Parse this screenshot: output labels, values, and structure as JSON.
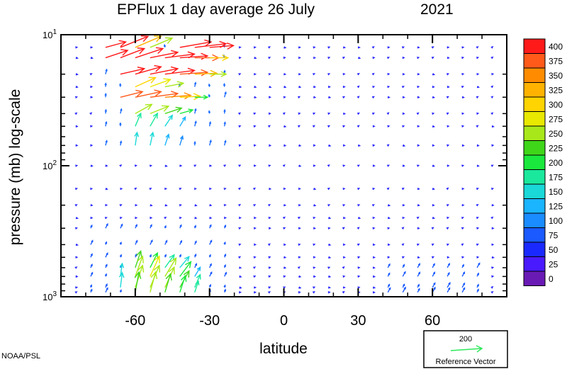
{
  "chart_data": {
    "type": "vector_field",
    "title": "EPFlux  1 day average  26 July",
    "year": "2021",
    "xlabel": "latitude",
    "ylabel": "pressure (mb)  log-scale",
    "xlim": [
      -90,
      90
    ],
    "ylim": [
      1000,
      10
    ],
    "yscale": "log",
    "x_ticks": [
      -60,
      -30,
      0,
      30,
      60
    ],
    "x_tick_labels": [
      "-60",
      "-30",
      "0",
      "30",
      "60"
    ],
    "y_tick_labels": [
      {
        "base": "10",
        "exp": "1",
        "value": 10
      },
      {
        "base": "10",
        "exp": "2",
        "value": 100
      },
      {
        "base": "10",
        "exp": "3",
        "value": 1000
      }
    ],
    "colorbar": {
      "levels": [
        "400",
        "375",
        "350",
        "325",
        "300",
        "275",
        "250",
        "225",
        "200",
        "175",
        "150",
        "125",
        "100",
        "75",
        "50",
        "25",
        "0"
      ],
      "colors": [
        "#ff1a1a",
        "#ff5a1a",
        "#ff8c00",
        "#ffb300",
        "#ffd400",
        "#e8e800",
        "#a8e81a",
        "#3fd61a",
        "#1ae83c",
        "#1ae89c",
        "#1ad8d8",
        "#1ab4ff",
        "#1a8cff",
        "#1a5aff",
        "#1a2aff",
        "#4a1aff",
        "#6a1ab4"
      ]
    },
    "reference_vector": {
      "value": "200",
      "label": "Reference Vector",
      "color": "#2ee85a"
    },
    "levels_mb": [
      12.5,
      15,
      20,
      25,
      30,
      40,
      50,
      70,
      100,
      150,
      200,
      250,
      300,
      400,
      500,
      600,
      700,
      850,
      925
    ],
    "series_note": "",
    "strong_vectors": [
      {
        "lat": -72,
        "p": 15,
        "u": 24,
        "v": -8,
        "mag": 400
      },
      {
        "lat": -66,
        "p": 15,
        "u": 26,
        "v": -10,
        "mag": 400
      },
      {
        "lat": -60,
        "p": 15,
        "u": 30,
        "v": -10,
        "mag": 400
      },
      {
        "lat": -54,
        "p": 15,
        "u": 30,
        "v": -6,
        "mag": 400
      },
      {
        "lat": -48,
        "p": 15,
        "u": 32,
        "v": -4,
        "mag": 400
      },
      {
        "lat": -42,
        "p": 15,
        "u": 30,
        "v": -2,
        "mag": 400
      },
      {
        "lat": -36,
        "p": 15,
        "u": 26,
        "v": 0,
        "mag": 375
      },
      {
        "lat": -30,
        "p": 15,
        "u": 20,
        "v": 0,
        "mag": 300
      },
      {
        "lat": -72,
        "p": 12.5,
        "u": 22,
        "v": -6,
        "mag": 400
      },
      {
        "lat": -66,
        "p": 12.5,
        "u": 30,
        "v": -12,
        "mag": 400
      },
      {
        "lat": -60,
        "p": 12.5,
        "u": 28,
        "v": -12,
        "mag": 325
      },
      {
        "lat": -54,
        "p": 12.5,
        "u": 24,
        "v": -10,
        "mag": 250
      },
      {
        "lat": -42,
        "p": 12.5,
        "u": 34,
        "v": -6,
        "mag": 400
      },
      {
        "lat": -36,
        "p": 12.5,
        "u": 34,
        "v": -4,
        "mag": 400
      },
      {
        "lat": -30,
        "p": 12.5,
        "u": 26,
        "v": -2,
        "mag": 400
      },
      {
        "lat": -66,
        "p": 20,
        "u": 26,
        "v": -6,
        "mag": 400
      },
      {
        "lat": -60,
        "p": 20,
        "u": 28,
        "v": -8,
        "mag": 400
      },
      {
        "lat": -54,
        "p": 20,
        "u": 30,
        "v": -6,
        "mag": 400
      },
      {
        "lat": -48,
        "p": 20,
        "u": 32,
        "v": -4,
        "mag": 400
      },
      {
        "lat": -42,
        "p": 20,
        "u": 30,
        "v": -2,
        "mag": 375
      },
      {
        "lat": -36,
        "p": 20,
        "u": 24,
        "v": -1,
        "mag": 325
      },
      {
        "lat": -30,
        "p": 20,
        "u": 18,
        "v": 0,
        "mag": 250
      },
      {
        "lat": -60,
        "p": 25,
        "u": 22,
        "v": -10,
        "mag": 300
      },
      {
        "lat": -54,
        "p": 25,
        "u": 22,
        "v": -8,
        "mag": 275
      },
      {
        "lat": -48,
        "p": 25,
        "u": 20,
        "v": -4,
        "mag": 250
      },
      {
        "lat": -66,
        "p": 30,
        "u": 24,
        "v": -6,
        "mag": 375
      },
      {
        "lat": -60,
        "p": 30,
        "u": 28,
        "v": -6,
        "mag": 375
      },
      {
        "lat": -54,
        "p": 30,
        "u": 30,
        "v": -4,
        "mag": 375
      },
      {
        "lat": -48,
        "p": 30,
        "u": 28,
        "v": -2,
        "mag": 350
      },
      {
        "lat": -42,
        "p": 30,
        "u": 22,
        "v": -1,
        "mag": 300
      },
      {
        "lat": -36,
        "p": 30,
        "u": 14,
        "v": 0,
        "mag": 200
      },
      {
        "lat": -60,
        "p": 40,
        "u": 18,
        "v": -10,
        "mag": 250
      },
      {
        "lat": -54,
        "p": 40,
        "u": 20,
        "v": -8,
        "mag": 250
      },
      {
        "lat": -48,
        "p": 40,
        "u": 18,
        "v": -6,
        "mag": 225
      },
      {
        "lat": -42,
        "p": 40,
        "u": 14,
        "v": -4,
        "mag": 200
      },
      {
        "lat": -60,
        "p": 50,
        "u": 6,
        "v": -14,
        "mag": 175
      },
      {
        "lat": -54,
        "p": 50,
        "u": 8,
        "v": -14,
        "mag": 175
      },
      {
        "lat": -48,
        "p": 50,
        "u": 8,
        "v": -12,
        "mag": 150
      },
      {
        "lat": -42,
        "p": 50,
        "u": 6,
        "v": -10,
        "mag": 125
      },
      {
        "lat": -60,
        "p": 70,
        "u": 2,
        "v": -14,
        "mag": 150
      },
      {
        "lat": -54,
        "p": 70,
        "u": 3,
        "v": -14,
        "mag": 150
      },
      {
        "lat": -48,
        "p": 70,
        "u": 4,
        "v": -12,
        "mag": 125
      },
      {
        "lat": -42,
        "p": 70,
        "u": 3,
        "v": -10,
        "mag": 100
      },
      {
        "lat": -60,
        "p": 600,
        "u": 6,
        "v": -18,
        "mag": 225
      },
      {
        "lat": -54,
        "p": 600,
        "u": 8,
        "v": -16,
        "mag": 200
      },
      {
        "lat": -48,
        "p": 600,
        "u": 10,
        "v": -14,
        "mag": 175
      },
      {
        "lat": -42,
        "p": 600,
        "u": 10,
        "v": -12,
        "mag": 150
      },
      {
        "lat": -60,
        "p": 700,
        "u": 8,
        "v": -22,
        "mag": 250
      },
      {
        "lat": -54,
        "p": 700,
        "u": 10,
        "v": -22,
        "mag": 275
      },
      {
        "lat": -48,
        "p": 700,
        "u": 12,
        "v": -20,
        "mag": 250
      },
      {
        "lat": -42,
        "p": 700,
        "u": 12,
        "v": -16,
        "mag": 200
      },
      {
        "lat": -36,
        "p": 700,
        "u": 6,
        "v": -10,
        "mag": 125
      },
      {
        "lat": -66,
        "p": 700,
        "u": 2,
        "v": -14,
        "mag": 150
      },
      {
        "lat": -60,
        "p": 850,
        "u": 8,
        "v": -24,
        "mag": 250
      },
      {
        "lat": -54,
        "p": 850,
        "u": 10,
        "v": -24,
        "mag": 250
      },
      {
        "lat": -48,
        "p": 850,
        "u": 10,
        "v": -22,
        "mag": 250
      },
      {
        "lat": -42,
        "p": 850,
        "u": 10,
        "v": -18,
        "mag": 225
      },
      {
        "lat": -36,
        "p": 850,
        "u": 6,
        "v": -14,
        "mag": 175
      },
      {
        "lat": -66,
        "p": 850,
        "u": 2,
        "v": -16,
        "mag": 150
      },
      {
        "lat": -60,
        "p": 925,
        "u": 4,
        "v": -22,
        "mag": 225
      },
      {
        "lat": -54,
        "p": 925,
        "u": 6,
        "v": -22,
        "mag": 250
      },
      {
        "lat": -48,
        "p": 925,
        "u": 6,
        "v": -20,
        "mag": 225
      },
      {
        "lat": -42,
        "p": 925,
        "u": 6,
        "v": -18,
        "mag": 200
      },
      {
        "lat": -36,
        "p": 925,
        "u": 4,
        "v": -12,
        "mag": 175
      }
    ]
  },
  "footer": {
    "credit": "NOAA/PSL"
  }
}
